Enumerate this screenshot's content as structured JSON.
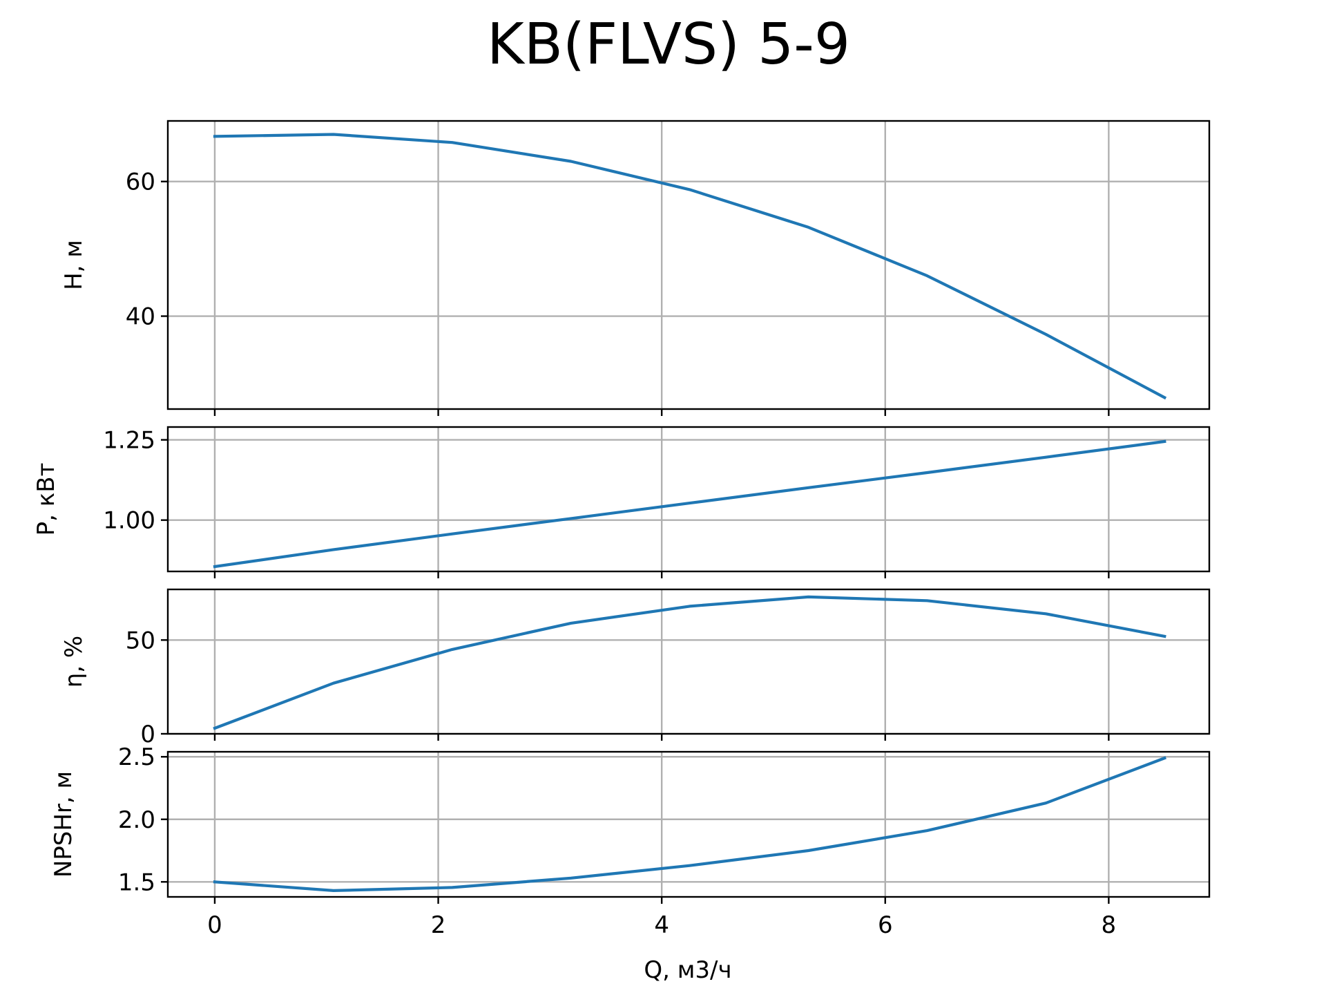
{
  "chart_data": {
    "type": "line",
    "title": "KB(FLVS) 5-9",
    "xlabel": "Q, м3/ч",
    "xlim": [
      -0.42,
      8.9
    ],
    "x_ticks": [
      0,
      2,
      4,
      6,
      8
    ],
    "x_tick_labels": [
      "0",
      "2",
      "4",
      "6",
      "8"
    ],
    "grid": true,
    "color": "#1f77b4",
    "x": [
      0,
      1.0625,
      2.125,
      3.1875,
      4.25,
      5.3125,
      6.375,
      7.4375,
      8.5
    ],
    "panels": [
      {
        "ylabel": "H, м",
        "ylim": [
          26.2,
          69.0
        ],
        "y_ticks": [
          40,
          60
        ],
        "y_tick_labels": [
          "40",
          "60"
        ],
        "values": [
          66.7,
          67.0,
          65.8,
          63.0,
          58.8,
          53.2,
          46.0,
          37.3,
          27.9
        ]
      },
      {
        "ylabel": "P, кВт",
        "ylim": [
          0.84,
          1.29
        ],
        "y_ticks": [
          1.0,
          1.25
        ],
        "y_tick_labels": [
          "1.00",
          "1.25"
        ],
        "values": [
          0.855,
          0.908,
          0.957,
          1.005,
          1.053,
          1.101,
          1.148,
          1.196,
          1.245
        ]
      },
      {
        "ylabel": "η, %",
        "ylim": [
          0,
          77
        ],
        "y_ticks": [
          0,
          50
        ],
        "y_tick_labels": [
          "0",
          "50"
        ],
        "values": [
          3,
          27,
          45,
          59,
          68,
          73,
          71,
          64,
          52
        ]
      },
      {
        "ylabel": "NPSHr, м",
        "ylim": [
          1.38,
          2.54
        ],
        "y_ticks": [
          1.5,
          2.0,
          2.5
        ],
        "y_tick_labels": [
          "1.5",
          "2.0",
          "2.5"
        ],
        "values": [
          1.5,
          1.43,
          1.455,
          1.53,
          1.63,
          1.75,
          1.91,
          2.13,
          2.49
        ]
      }
    ]
  }
}
